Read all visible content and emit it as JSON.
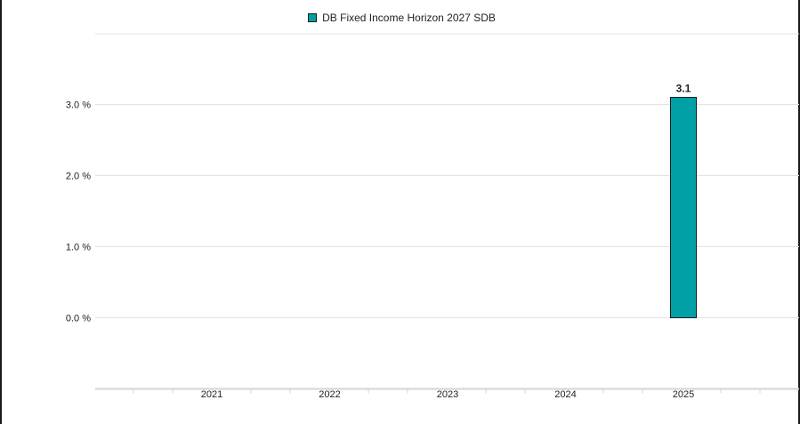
{
  "colors": {
    "bar": "#00A0A6",
    "grid": "#e3e3e3",
    "axis": "#d4d4d4"
  },
  "chart_data": {
    "type": "bar",
    "categories": [
      "2021",
      "2022",
      "2023",
      "2024",
      "2025"
    ],
    "series": [
      {
        "name": "DB Fixed Income Horizon 2027 SDB",
        "values": [
          null,
          null,
          null,
          null,
          3.1
        ],
        "data_labels": [
          "",
          "",
          "",
          "",
          "3.1"
        ]
      }
    ],
    "y_ticks": [
      0,
      1,
      2,
      3
    ],
    "y_tick_labels": [
      "0.0 %",
      "1.0 %",
      "2.0 %",
      "3.0 %"
    ],
    "ylim": [
      0,
      4
    ],
    "grid": true,
    "legend_position": "top-center"
  }
}
